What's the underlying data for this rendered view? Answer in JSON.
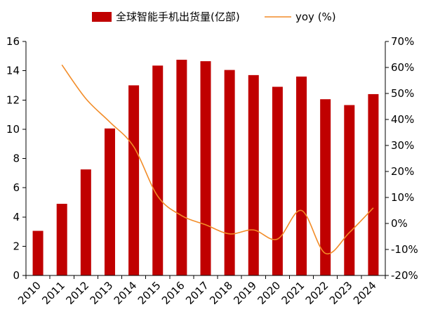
{
  "chart_data": {
    "type": "bar",
    "categories": [
      "2010",
      "2011",
      "2012",
      "2013",
      "2014",
      "2015",
      "2016",
      "2017",
      "2018",
      "2019",
      "2020",
      "2021",
      "2022",
      "2023",
      "2024"
    ],
    "series": [
      {
        "name": "全球智能手机出货量(亿部)",
        "type": "bar",
        "axis": "left",
        "color": "#c00000",
        "values": [
          3.05,
          4.9,
          7.25,
          10.05,
          13.0,
          14.35,
          14.75,
          14.65,
          14.05,
          13.7,
          12.9,
          13.6,
          12.05,
          11.65,
          12.4
        ]
      },
      {
        "name": "yoy (%)",
        "type": "line",
        "axis": "right",
        "color": "#f28c28",
        "values": [
          null,
          61.0,
          48.0,
          39.0,
          29.5,
          10.5,
          3.0,
          -0.5,
          -4.0,
          -2.5,
          -6.0,
          5.0,
          -11.5,
          -3.5,
          6.0
        ]
      }
    ],
    "y_left": {
      "ylim": [
        0,
        16
      ],
      "ticks": [
        "0",
        "2",
        "4",
        "6",
        "8",
        "10",
        "12",
        "14",
        "16"
      ]
    },
    "y_right": {
      "ylim": [
        -20,
        70
      ],
      "ticks": [
        "-20%",
        "-10%",
        "0%",
        "10%",
        "20%",
        "30%",
        "40%",
        "50%",
        "60%",
        "70%"
      ]
    },
    "title": "",
    "xlabel": "",
    "ylabel": "",
    "grid": false,
    "legend": "top-center"
  }
}
